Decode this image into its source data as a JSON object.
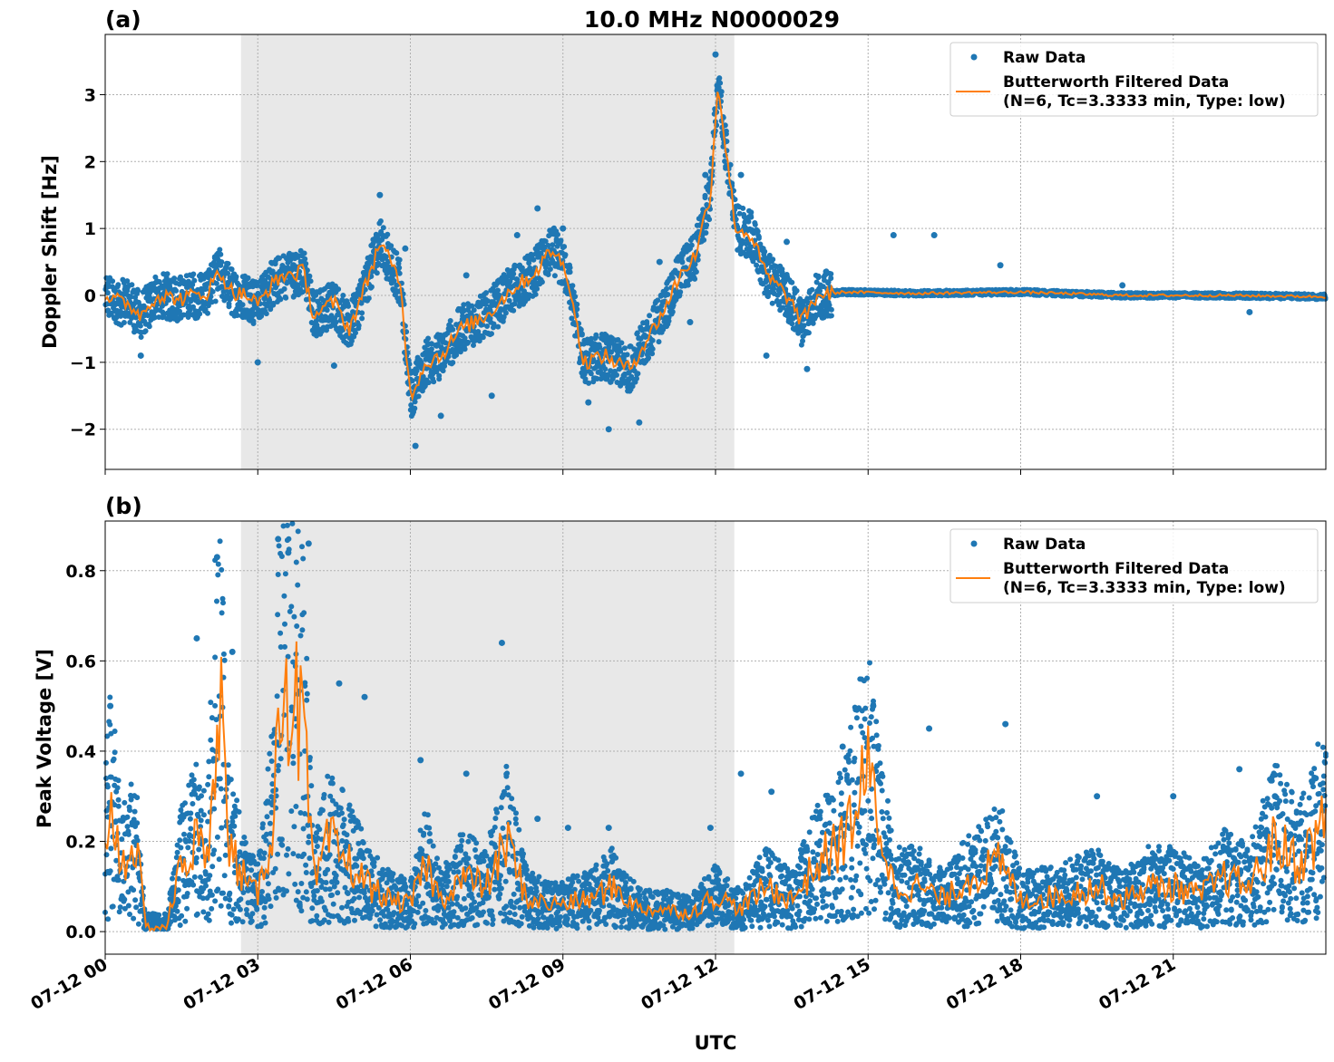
{
  "figure": {
    "title": "10.0 MHz N0000029",
    "xlabel": "UTC",
    "x_ticks": [
      "07-12 00",
      "07-12 03",
      "07-12 06",
      "07-12 09",
      "07-12 12",
      "07-12 15",
      "07-12 18",
      "07-12 21"
    ],
    "shaded_interval_hours": [
      2.67,
      12.37
    ],
    "colors": {
      "raw": "#1f77b4",
      "filtered": "#ff7f0e",
      "shade": "#e8e8e8",
      "grid": "#b0b0b0"
    }
  },
  "legend": {
    "raw_label": "Raw Data",
    "filtered_label_line1": "Butterworth Filtered Data",
    "filtered_label_line2": "(N=6, Tc=3.3333 min, Type: low)"
  },
  "chart_data": [
    {
      "panel": "(a)",
      "type": "scatter",
      "ylabel": "Doppler Shift [Hz]",
      "x_unit": "hours since 07-12 00 UTC",
      "xlim": [
        0,
        24
      ],
      "ylim": [
        -2.6,
        3.9
      ],
      "y_ticks": [
        "−2",
        "−1",
        "0",
        "1",
        "2",
        "3"
      ],
      "y_tick_values": [
        -2,
        -1,
        0,
        1,
        2,
        3
      ],
      "series": [
        {
          "name": "Butterworth Filtered Data",
          "x": [
            0,
            0.3,
            0.5,
            0.7,
            1.0,
            1.5,
            2.0,
            2.25,
            2.5,
            2.8,
            3.0,
            3.2,
            3.5,
            3.9,
            4.1,
            4.5,
            4.8,
            5.1,
            5.4,
            5.6,
            5.8,
            6.0,
            6.3,
            6.6,
            7.0,
            7.5,
            8.0,
            8.4,
            8.8,
            9.1,
            9.4,
            9.8,
            10.3,
            10.7,
            11.0,
            11.3,
            11.6,
            11.9,
            12.05,
            12.2,
            12.4,
            12.7,
            13.0,
            13.4,
            13.7,
            14.0,
            14.5,
            16.0,
            18.0,
            20.0,
            22.0,
            24.0
          ],
          "y": [
            0,
            -0.1,
            -0.15,
            -0.3,
            0,
            -0.05,
            0.05,
            0.35,
            0.05,
            0.0,
            -0.15,
            0.1,
            0.3,
            0.35,
            -0.3,
            -0.1,
            -0.5,
            0.1,
            0.8,
            0.5,
            0.2,
            -1.5,
            -1.0,
            -0.9,
            -0.5,
            -0.3,
            0.1,
            0.3,
            0.7,
            0.3,
            -1.0,
            -0.9,
            -1.1,
            -0.6,
            -0.2,
            0.3,
            0.6,
            1.5,
            3.2,
            2.2,
            1.0,
            0.9,
            0.3,
            0.0,
            -0.4,
            0.0,
            0.05,
            0.03,
            0.05,
            0.0,
            0.0,
            -0.02
          ]
        },
        {
          "name": "Raw Data",
          "x": [
            0.7,
            2.2,
            3.0,
            3.7,
            4.5,
            5.4,
            5.9,
            6.1,
            6.6,
            7.1,
            7.6,
            8.1,
            8.5,
            9.0,
            9.5,
            9.9,
            10.2,
            10.5,
            10.9,
            11.5,
            11.8,
            12.0,
            12.15,
            12.5,
            13.0,
            13.4,
            13.8,
            14.2,
            15.5,
            16.3,
            17.6,
            20.0,
            22.5
          ],
          "y": [
            -0.9,
            0.55,
            -1.0,
            0.45,
            -1.05,
            1.5,
            0.7,
            -2.25,
            -1.8,
            0.3,
            -1.5,
            0.9,
            1.3,
            1.0,
            -1.6,
            -2.0,
            -1.2,
            -1.9,
            0.5,
            -0.4,
            1.8,
            3.6,
            2.4,
            1.8,
            -0.9,
            0.8,
            -1.1,
            -0.3,
            0.9,
            0.9,
            0.45,
            0.15,
            -0.25
          ]
        }
      ]
    },
    {
      "panel": "(b)",
      "type": "scatter",
      "ylabel": "Peak Voltage [V]",
      "x_unit": "hours since 07-12 00 UTC",
      "xlim": [
        0,
        24
      ],
      "ylim": [
        -0.05,
        0.91
      ],
      "y_ticks": [
        "0.0",
        "0.2",
        "0.4",
        "0.6",
        "0.8"
      ],
      "y_tick_values": [
        0.0,
        0.2,
        0.4,
        0.6,
        0.8
      ],
      "series": [
        {
          "name": "Butterworth Filtered Data",
          "x": [
            0,
            0.1,
            0.3,
            0.6,
            0.8,
            1.2,
            1.5,
            1.8,
            2.0,
            2.25,
            2.4,
            2.8,
            3.0,
            3.3,
            3.5,
            3.7,
            3.9,
            4.1,
            4.4,
            4.8,
            5.2,
            5.6,
            6.0,
            6.3,
            6.6,
            7.0,
            7.5,
            7.9,
            8.3,
            8.8,
            9.5,
            10.0,
            10.5,
            11.0,
            11.5,
            12.0,
            12.5,
            13.0,
            13.5,
            14.0,
            14.5,
            15.0,
            15.5,
            16.0,
            16.5,
            17.0,
            17.6,
            18.0,
            18.8,
            19.5,
            20.0,
            20.5,
            21.0,
            21.5,
            22.0,
            22.5,
            23.0,
            23.5,
            24.0
          ],
          "y": [
            0.2,
            0.3,
            0.15,
            0.2,
            0.01,
            0.01,
            0.15,
            0.2,
            0.15,
            0.6,
            0.2,
            0.1,
            0.08,
            0.25,
            0.6,
            0.5,
            0.45,
            0.1,
            0.2,
            0.15,
            0.1,
            0.07,
            0.06,
            0.15,
            0.07,
            0.12,
            0.1,
            0.2,
            0.07,
            0.06,
            0.07,
            0.1,
            0.05,
            0.05,
            0.04,
            0.08,
            0.05,
            0.1,
            0.07,
            0.15,
            0.2,
            0.35,
            0.1,
            0.1,
            0.07,
            0.12,
            0.15,
            0.07,
            0.08,
            0.1,
            0.07,
            0.1,
            0.1,
            0.08,
            0.12,
            0.1,
            0.2,
            0.15,
            0.25
          ]
        },
        {
          "name": "Raw Data",
          "x": [
            0.1,
            1.8,
            2.2,
            2.5,
            3.4,
            3.6,
            4.0,
            4.6,
            5.1,
            6.2,
            7.1,
            7.8,
            8.5,
            9.1,
            9.9,
            11.9,
            12.5,
            13.1,
            14.5,
            15.1,
            16.2,
            17.7,
            19.5,
            21.0,
            22.3,
            23.0,
            23.8
          ],
          "y": [
            0.5,
            0.65,
            0.83,
            0.62,
            0.87,
            0.84,
            0.86,
            0.55,
            0.52,
            0.38,
            0.35,
            0.64,
            0.25,
            0.23,
            0.23,
            0.23,
            0.35,
            0.31,
            0.41,
            0.5,
            0.45,
            0.46,
            0.3,
            0.3,
            0.36,
            0.3,
            0.34
          ]
        }
      ]
    }
  ]
}
